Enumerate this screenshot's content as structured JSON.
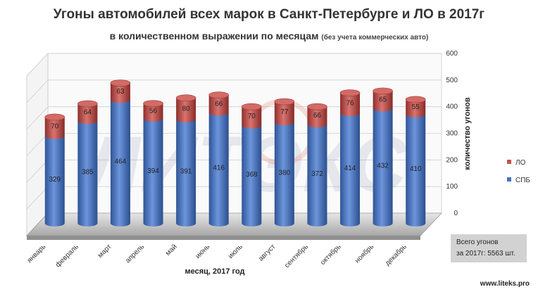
{
  "title": "Угоны автомобилей всех марок в Санкт-Петербурге и ЛО в 2017г",
  "subtitle": "в количественном выражении по месяцам",
  "subtitle_note": "(без учета коммерческих авто)",
  "total_box": {
    "line1": "Всего угонов",
    "line2": "за 2017г:  5563 шт."
  },
  "site": "www.liteks.pro",
  "watermark": "ЛИТЭКС",
  "colors": {
    "spb": "#4472c4",
    "lo": "#c0504d"
  },
  "chart_data": {
    "type": "bar",
    "stacked": true,
    "categories": [
      "январь",
      "февраль",
      "март",
      "апрель",
      "май",
      "июнь",
      "июль",
      "август",
      "сентябрь",
      "октябрь",
      "ноябрь",
      "декабрь"
    ],
    "series": [
      {
        "name": "СПБ",
        "values": [
          329,
          385,
          464,
          394,
          391,
          416,
          368,
          380,
          372,
          414,
          432,
          410
        ]
      },
      {
        "name": "ЛО",
        "values": [
          70,
          64,
          63,
          56,
          80,
          66,
          70,
          77,
          66,
          76,
          65,
          55
        ]
      }
    ],
    "xlabel": "месяц, 2017 год",
    "ylabel": "количество угонов",
    "ylim": [
      0,
      600
    ],
    "yticks": [
      0,
      100,
      200,
      300,
      400,
      500,
      600
    ],
    "legend_position": "right"
  }
}
